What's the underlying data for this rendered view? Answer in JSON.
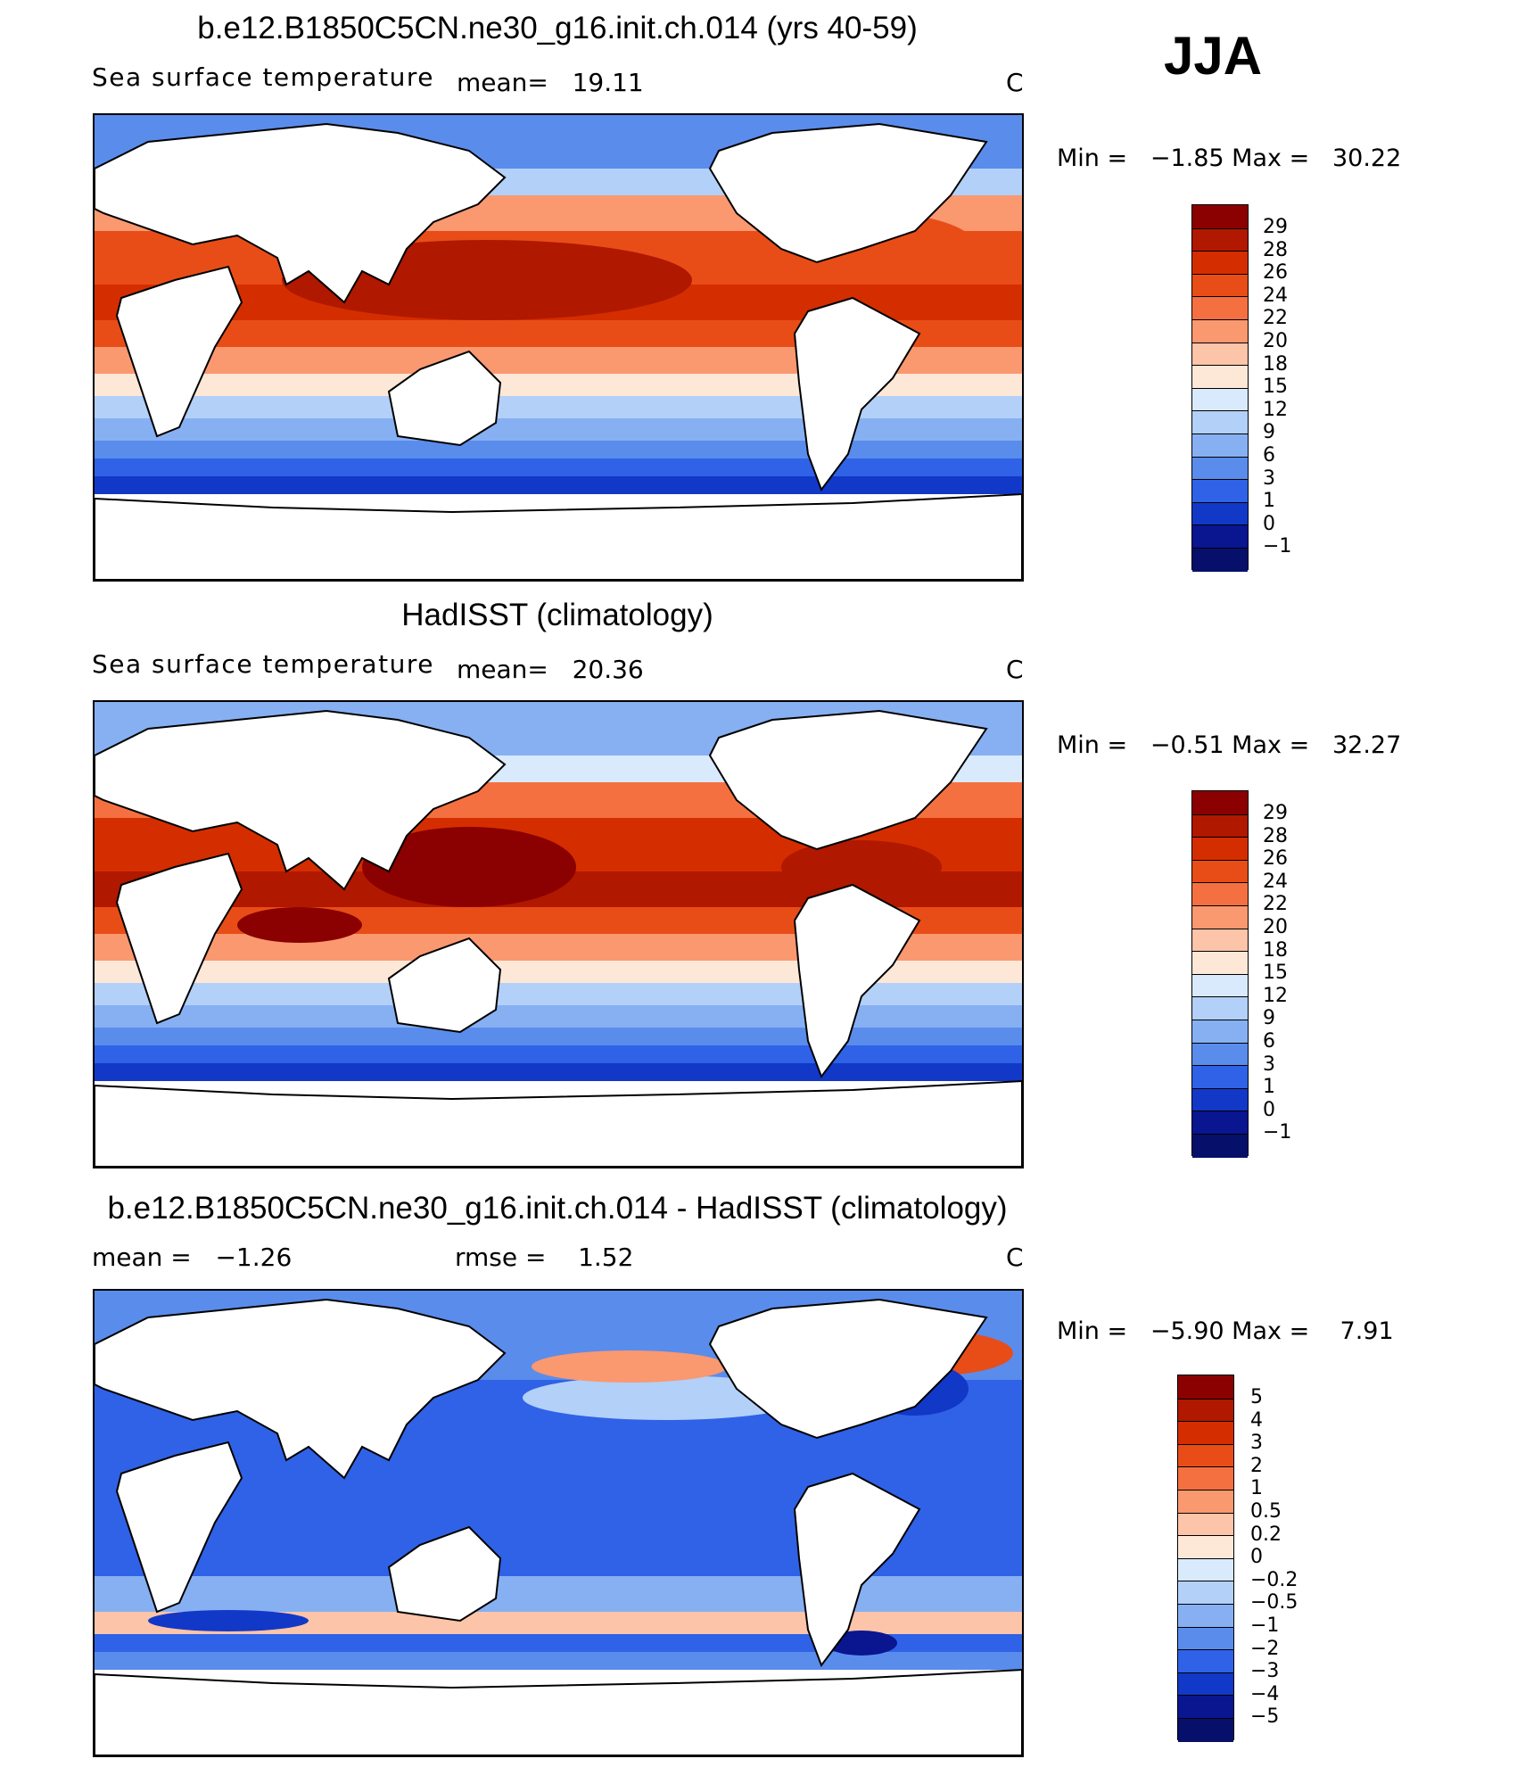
{
  "season": "JJA",
  "panels": [
    {
      "title": "b.e12.B1850C5CN.ne30_g16.init.ch.014 (yrs 40-59)",
      "label": "Sea surface temperature",
      "stat_text": "mean=   19.11",
      "units": "C",
      "min_text": "Min =   −1.85 Max =   30.22",
      "colorbar_levels": [
        "29",
        "28",
        "26",
        "24",
        "22",
        "20",
        "18",
        "15",
        "12",
        "9",
        "6",
        "3",
        "1",
        "0",
        "−1"
      ]
    },
    {
      "title": "HadISST (climatology)",
      "label": "Sea surface temperature",
      "stat_text": "mean=   20.36",
      "units": "C",
      "min_text": "Min =   −0.51 Max =   32.27",
      "colorbar_levels": [
        "29",
        "28",
        "26",
        "24",
        "22",
        "20",
        "18",
        "15",
        "12",
        "9",
        "6",
        "3",
        "1",
        "0",
        "−1"
      ]
    },
    {
      "title": "b.e12.B1850C5CN.ne30_g16.init.ch.014 - HadISST (climatology)",
      "label": "mean =   −1.26",
      "stat_text": "rmse =    1.52",
      "units": "C",
      "min_text": "Min =   −5.90 Max =    7.91",
      "colorbar_levels": [
        "5",
        "4",
        "3",
        "2",
        "1",
        "0.5",
        "0.2",
        "0",
        "−0.2",
        "−0.5",
        "−1",
        "−2",
        "−3",
        "−4",
        "−5"
      ]
    }
  ],
  "colors": {
    "abs_palette": [
      "#8b0000",
      "#b01800",
      "#d42e00",
      "#e84d18",
      "#f57040",
      "#fa9870",
      "#fcc4a8",
      "#fde8d8",
      "#d8eafb",
      "#b2d0f8",
      "#86b0f2",
      "#5a8cec",
      "#2f62e6",
      "#1238c8",
      "#0a1590"
    ],
    "diff_palette": [
      "#8b0000",
      "#b01800",
      "#d42e00",
      "#e84d18",
      "#f57040",
      "#fa9870",
      "#fcc4a8",
      "#fde8d8",
      "#d8eafb",
      "#b2d0f8",
      "#86b0f2",
      "#5a8cec",
      "#2f62e6",
      "#1238c8",
      "#0a1590",
      "#06106a"
    ]
  }
}
